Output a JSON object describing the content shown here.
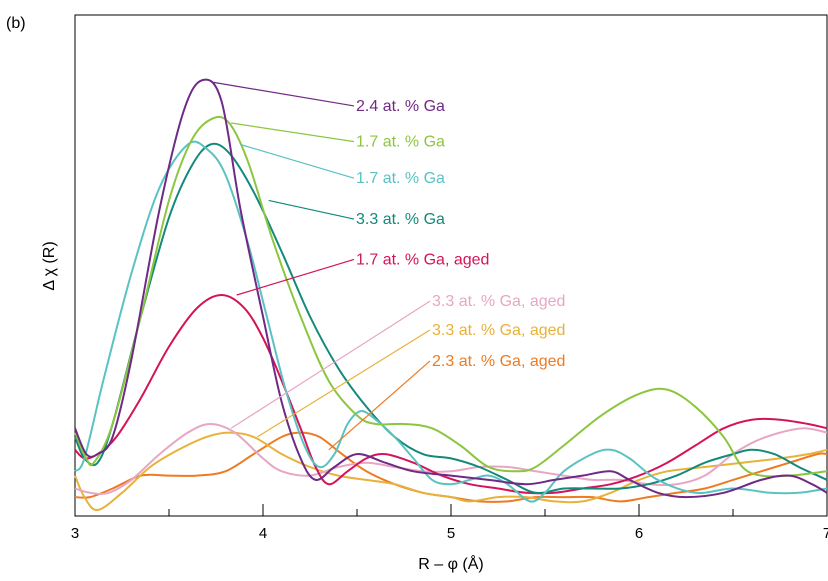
{
  "panel_label": "(b)",
  "chart_data": {
    "type": "line",
    "title": "",
    "xlabel": "R – φ (Å)",
    "ylabel": "Δ χ (R)",
    "xlim": [
      3,
      7
    ],
    "ylim": [
      0,
      1
    ],
    "x_ticks": [
      "3",
      "4",
      "5",
      "6",
      "7"
    ],
    "grid": false,
    "legend": "inline labels with leader lines",
    "series": [
      {
        "name": "2.4 at. % Ga",
        "color": "#6f2a86",
        "label_y": 0.928,
        "anchor": [
          3.73,
          0.995
        ],
        "points": [
          [
            3,
            0.19
          ],
          [
            3.06,
            0.13
          ],
          [
            3.12,
            0.13
          ],
          [
            3.2,
            0.17
          ],
          [
            3.3,
            0.35
          ],
          [
            3.45,
            0.7
          ],
          [
            3.58,
            0.93
          ],
          [
            3.68,
            1.0
          ],
          [
            3.78,
            0.95
          ],
          [
            3.88,
            0.7
          ],
          [
            4.0,
            0.45
          ],
          [
            4.1,
            0.25
          ],
          [
            4.2,
            0.12
          ],
          [
            4.28,
            0.07
          ],
          [
            4.38,
            0.1
          ],
          [
            4.5,
            0.13
          ],
          [
            4.65,
            0.11
          ],
          [
            4.8,
            0.09
          ],
          [
            5.0,
            0.08
          ],
          [
            5.2,
            0.07
          ],
          [
            5.4,
            0.06
          ],
          [
            5.55,
            0.07
          ],
          [
            5.7,
            0.08
          ],
          [
            5.85,
            0.09
          ],
          [
            5.95,
            0.07
          ],
          [
            6.1,
            0.04
          ],
          [
            6.25,
            0.03
          ],
          [
            6.45,
            0.04
          ],
          [
            6.65,
            0.07
          ],
          [
            6.8,
            0.08
          ],
          [
            6.92,
            0.06
          ],
          [
            7,
            0.04
          ]
        ]
      },
      {
        "name": "1.7 at. % Ga",
        "color": "#8cc63f",
        "label_y": 0.845,
        "anchor": [
          3.83,
          0.9
        ],
        "points": [
          [
            3,
            0.18
          ],
          [
            3.06,
            0.12
          ],
          [
            3.1,
            0.11
          ],
          [
            3.2,
            0.2
          ],
          [
            3.35,
            0.45
          ],
          [
            3.5,
            0.72
          ],
          [
            3.62,
            0.86
          ],
          [
            3.73,
            0.91
          ],
          [
            3.82,
            0.9
          ],
          [
            3.92,
            0.81
          ],
          [
            4.05,
            0.63
          ],
          [
            4.2,
            0.45
          ],
          [
            4.35,
            0.3
          ],
          [
            4.5,
            0.22
          ],
          [
            4.6,
            0.2
          ],
          [
            4.75,
            0.2
          ],
          [
            4.9,
            0.19
          ],
          [
            5.05,
            0.15
          ],
          [
            5.2,
            0.1
          ],
          [
            5.35,
            0.09
          ],
          [
            5.45,
            0.1
          ],
          [
            5.6,
            0.15
          ],
          [
            5.8,
            0.22
          ],
          [
            6.0,
            0.27
          ],
          [
            6.15,
            0.28
          ],
          [
            6.3,
            0.24
          ],
          [
            6.45,
            0.17
          ],
          [
            6.55,
            0.1
          ],
          [
            6.65,
            0.08
          ],
          [
            6.8,
            0.08
          ],
          [
            7,
            0.09
          ]
        ]
      },
      {
        "name": "1.7 at. % Ga",
        "color": "#5bc2c2",
        "label_y": 0.76,
        "anchor": [
          3.88,
          0.85
        ],
        "points": [
          [
            3,
            0.09
          ],
          [
            3.05,
            0.12
          ],
          [
            3.15,
            0.3
          ],
          [
            3.3,
            0.55
          ],
          [
            3.45,
            0.75
          ],
          [
            3.6,
            0.85
          ],
          [
            3.7,
            0.84
          ],
          [
            3.8,
            0.78
          ],
          [
            3.92,
            0.62
          ],
          [
            4.02,
            0.45
          ],
          [
            4.12,
            0.28
          ],
          [
            4.22,
            0.15
          ],
          [
            4.3,
            0.1
          ],
          [
            4.38,
            0.13
          ],
          [
            4.45,
            0.2
          ],
          [
            4.52,
            0.23
          ],
          [
            4.6,
            0.21
          ],
          [
            4.7,
            0.17
          ],
          [
            4.8,
            0.12
          ],
          [
            4.9,
            0.07
          ],
          [
            5.0,
            0.06
          ],
          [
            5.1,
            0.07
          ],
          [
            5.2,
            0.08
          ],
          [
            5.3,
            0.06
          ],
          [
            5.42,
            0.02
          ],
          [
            5.5,
            0.04
          ],
          [
            5.6,
            0.09
          ],
          [
            5.75,
            0.13
          ],
          [
            5.85,
            0.14
          ],
          [
            5.95,
            0.12
          ],
          [
            6.1,
            0.07
          ],
          [
            6.3,
            0.04
          ],
          [
            6.5,
            0.05
          ],
          [
            6.7,
            0.04
          ],
          [
            6.85,
            0.04
          ],
          [
            7,
            0.05
          ]
        ]
      },
      {
        "name": "3.3 at. % Ga",
        "color": "#138a7a",
        "label_y": 0.665,
        "anchor": [
          4.03,
          0.72
        ],
        "points": [
          [
            3,
            0.17
          ],
          [
            3.05,
            0.12
          ],
          [
            3.12,
            0.11
          ],
          [
            3.2,
            0.2
          ],
          [
            3.35,
            0.45
          ],
          [
            3.5,
            0.68
          ],
          [
            3.62,
            0.8
          ],
          [
            3.72,
            0.85
          ],
          [
            3.82,
            0.83
          ],
          [
            3.95,
            0.74
          ],
          [
            4.1,
            0.6
          ],
          [
            4.25,
            0.45
          ],
          [
            4.4,
            0.33
          ],
          [
            4.55,
            0.24
          ],
          [
            4.7,
            0.17
          ],
          [
            4.85,
            0.13
          ],
          [
            5.0,
            0.12
          ],
          [
            5.15,
            0.1
          ],
          [
            5.3,
            0.07
          ],
          [
            5.45,
            0.04
          ],
          [
            5.6,
            0.05
          ],
          [
            5.75,
            0.05
          ],
          [
            5.9,
            0.05
          ],
          [
            6.05,
            0.06
          ],
          [
            6.2,
            0.08
          ],
          [
            6.35,
            0.11
          ],
          [
            6.5,
            0.13
          ],
          [
            6.6,
            0.14
          ],
          [
            6.72,
            0.13
          ],
          [
            6.85,
            0.1
          ],
          [
            6.95,
            0.08
          ],
          [
            7,
            0.07
          ]
        ]
      },
      {
        "name": "1.7 at. % Ga, aged",
        "color": "#d4145a",
        "label_y": 0.571,
        "anchor": [
          3.86,
          0.5
        ],
        "points": [
          [
            3,
            0.14
          ],
          [
            3.05,
            0.12
          ],
          [
            3.12,
            0.13
          ],
          [
            3.22,
            0.17
          ],
          [
            3.35,
            0.26
          ],
          [
            3.5,
            0.38
          ],
          [
            3.65,
            0.47
          ],
          [
            3.78,
            0.5
          ],
          [
            3.9,
            0.47
          ],
          [
            4.0,
            0.4
          ],
          [
            4.1,
            0.3
          ],
          [
            4.2,
            0.19
          ],
          [
            4.28,
            0.1
          ],
          [
            4.35,
            0.06
          ],
          [
            4.45,
            0.09
          ],
          [
            4.55,
            0.12
          ],
          [
            4.65,
            0.13
          ],
          [
            4.8,
            0.11
          ],
          [
            4.95,
            0.08
          ],
          [
            5.1,
            0.06
          ],
          [
            5.25,
            0.05
          ],
          [
            5.4,
            0.04
          ],
          [
            5.55,
            0.04
          ],
          [
            5.7,
            0.05
          ],
          [
            5.85,
            0.06
          ],
          [
            6.0,
            0.08
          ],
          [
            6.15,
            0.11
          ],
          [
            6.3,
            0.15
          ],
          [
            6.45,
            0.19
          ],
          [
            6.6,
            0.21
          ],
          [
            6.75,
            0.21
          ],
          [
            6.9,
            0.2
          ],
          [
            7,
            0.19
          ]
        ]
      },
      {
        "name": "3.3 at. % Ga, aged",
        "color": "#e8a6c4",
        "label_y": 0.474,
        "anchor": [
          3.83,
          0.19
        ],
        "points": [
          [
            3,
            0.05
          ],
          [
            3.08,
            0.04
          ],
          [
            3.18,
            0.04
          ],
          [
            3.3,
            0.07
          ],
          [
            3.45,
            0.13
          ],
          [
            3.6,
            0.18
          ],
          [
            3.72,
            0.2
          ],
          [
            3.85,
            0.18
          ],
          [
            4.0,
            0.12
          ],
          [
            4.1,
            0.09
          ],
          [
            4.25,
            0.08
          ],
          [
            4.4,
            0.1
          ],
          [
            4.55,
            0.11
          ],
          [
            4.7,
            0.1
          ],
          [
            4.85,
            0.09
          ],
          [
            5.0,
            0.09
          ],
          [
            5.15,
            0.1
          ],
          [
            5.3,
            0.1
          ],
          [
            5.45,
            0.09
          ],
          [
            5.6,
            0.08
          ],
          [
            5.75,
            0.07
          ],
          [
            5.9,
            0.07
          ],
          [
            6.05,
            0.06
          ],
          [
            6.2,
            0.06
          ],
          [
            6.35,
            0.08
          ],
          [
            6.5,
            0.13
          ],
          [
            6.62,
            0.16
          ],
          [
            6.75,
            0.18
          ],
          [
            6.88,
            0.19
          ],
          [
            7,
            0.18
          ]
        ]
      },
      {
        "name": "3.3 at. % Ga, aged",
        "color": "#e8b13a",
        "label_y": 0.407,
        "anchor": [
          3.97,
          0.17
        ],
        "points": [
          [
            3,
            0.08
          ],
          [
            3.05,
            0.03
          ],
          [
            3.12,
            0.0
          ],
          [
            3.25,
            0.04
          ],
          [
            3.4,
            0.1
          ],
          [
            3.55,
            0.14
          ],
          [
            3.7,
            0.17
          ],
          [
            3.82,
            0.18
          ],
          [
            3.95,
            0.17
          ],
          [
            4.1,
            0.13
          ],
          [
            4.25,
            0.1
          ],
          [
            4.4,
            0.08
          ],
          [
            4.55,
            0.07
          ],
          [
            4.7,
            0.06
          ],
          [
            4.85,
            0.04
          ],
          [
            5.0,
            0.03
          ],
          [
            5.1,
            0.02
          ],
          [
            5.25,
            0.03
          ],
          [
            5.4,
            0.03
          ],
          [
            5.55,
            0.02
          ],
          [
            5.7,
            0.02
          ],
          [
            5.85,
            0.04
          ],
          [
            6.0,
            0.07
          ],
          [
            6.15,
            0.09
          ],
          [
            6.35,
            0.1
          ],
          [
            6.55,
            0.11
          ],
          [
            6.75,
            0.12
          ],
          [
            6.9,
            0.13
          ],
          [
            7,
            0.14
          ]
        ]
      },
      {
        "name": "2.3 at. % Ga, aged",
        "color": "#ee7b22",
        "label_y": 0.335,
        "anchor": [
          4.35,
          0.14
        ],
        "points": [
          [
            3,
            0.03
          ],
          [
            3.08,
            0.03
          ],
          [
            3.2,
            0.05
          ],
          [
            3.35,
            0.08
          ],
          [
            3.5,
            0.08
          ],
          [
            3.65,
            0.08
          ],
          [
            3.8,
            0.09
          ],
          [
            3.95,
            0.13
          ],
          [
            4.1,
            0.17
          ],
          [
            4.2,
            0.18
          ],
          [
            4.3,
            0.17
          ],
          [
            4.42,
            0.13
          ],
          [
            4.55,
            0.09
          ],
          [
            4.7,
            0.06
          ],
          [
            4.85,
            0.04
          ],
          [
            5.0,
            0.03
          ],
          [
            5.15,
            0.02
          ],
          [
            5.3,
            0.02
          ],
          [
            5.45,
            0.03
          ],
          [
            5.6,
            0.03
          ],
          [
            5.75,
            0.03
          ],
          [
            5.9,
            0.02
          ],
          [
            6.05,
            0.03
          ],
          [
            6.2,
            0.04
          ],
          [
            6.35,
            0.05
          ],
          [
            6.5,
            0.07
          ],
          [
            6.65,
            0.09
          ],
          [
            6.8,
            0.11
          ],
          [
            6.95,
            0.13
          ],
          [
            7,
            0.13
          ]
        ]
      }
    ]
  }
}
